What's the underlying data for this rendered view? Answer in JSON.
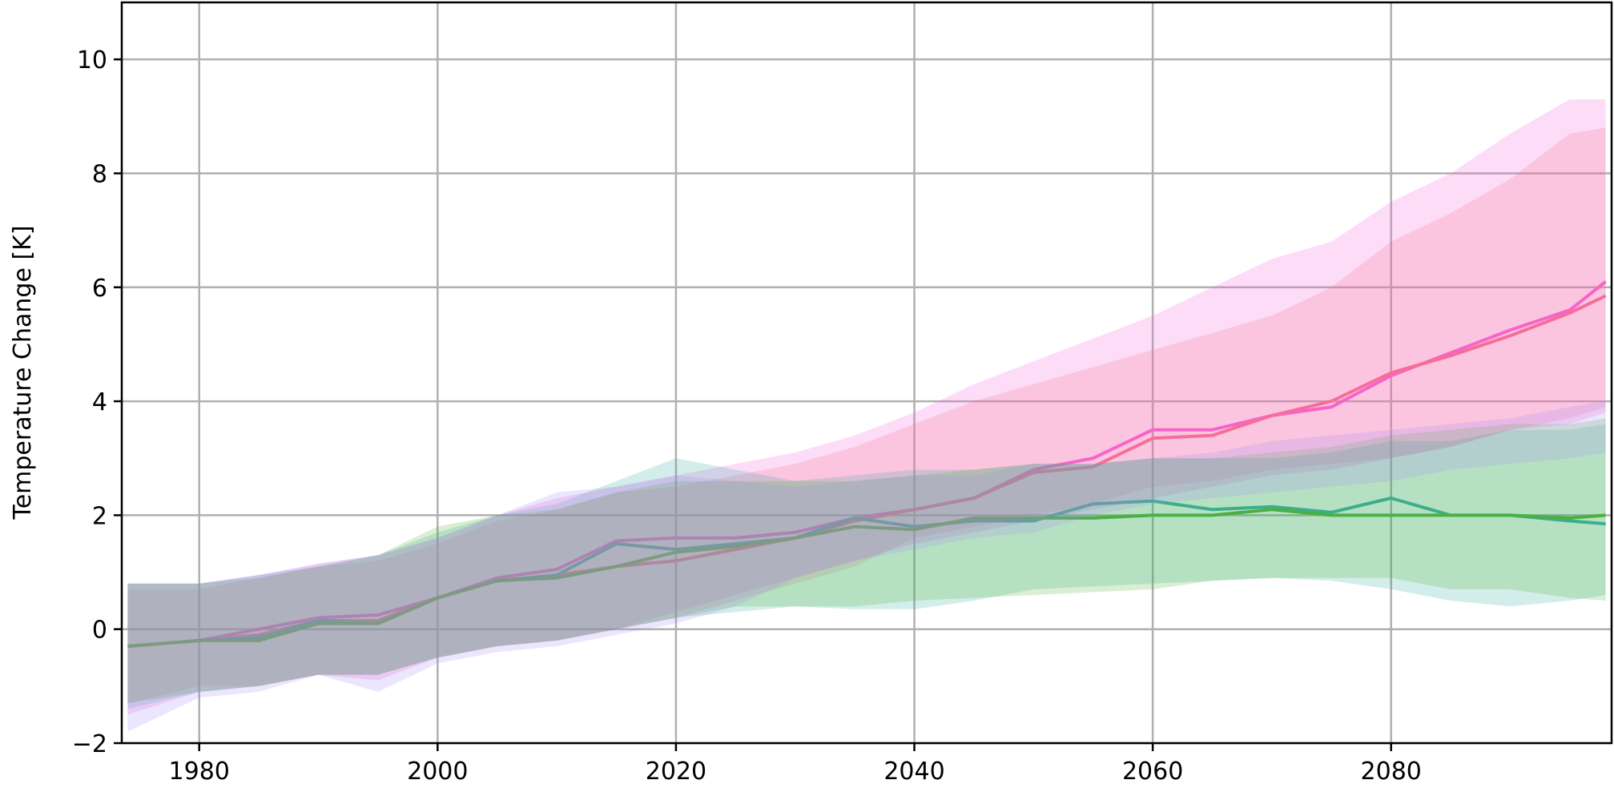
{
  "chart_data": {
    "type": "line",
    "title": "",
    "xlabel": "",
    "ylabel": "Temperature Change [K]",
    "xlim": [
      1973.5,
      2098.5
    ],
    "ylim": [
      -2,
      11
    ],
    "grid": true,
    "legend": "none",
    "xticks": [
      1980,
      2000,
      2020,
      2040,
      2060,
      2080
    ],
    "xtick_labels": [
      "1980",
      "2000",
      "2020",
      "2040",
      "2060",
      "2080"
    ],
    "yticks": [
      -2,
      0,
      2,
      4,
      6,
      8,
      10
    ],
    "ytick_labels": [
      "−2",
      "0",
      "2",
      "4",
      "6",
      "8",
      "10"
    ],
    "x": [
      1974,
      1980,
      1985,
      1990,
      1995,
      2000,
      2005,
      2010,
      2015,
      2020,
      2025,
      2030,
      2035,
      2040,
      2045,
      2050,
      2055,
      2060,
      2065,
      2070,
      2075,
      2080,
      2085,
      2090,
      2095,
      2098
    ],
    "series": [
      {
        "color": "#f561dd",
        "values": [
          -0.3,
          -0.2,
          0.0,
          0.2,
          0.25,
          0.55,
          0.9,
          1.05,
          1.55,
          1.6,
          1.6,
          1.7,
          1.95,
          2.1,
          2.3,
          2.8,
          3.0,
          3.5,
          3.5,
          3.75,
          3.9,
          4.45,
          4.85,
          5.25,
          5.6,
          6.1
        ]
      },
      {
        "color": "#f77189",
        "values": [
          -0.3,
          -0.2,
          -0.1,
          0.15,
          0.15,
          0.55,
          0.85,
          0.95,
          1.1,
          1.2,
          1.4,
          1.6,
          1.9,
          2.1,
          2.3,
          2.75,
          2.85,
          3.35,
          3.4,
          3.75,
          4.0,
          4.5,
          4.8,
          5.15,
          5.55,
          5.85
        ]
      },
      {
        "color": "#36ada4",
        "values": [
          -0.3,
          -0.2,
          -0.15,
          0.15,
          0.1,
          0.55,
          0.85,
          0.95,
          1.5,
          1.4,
          1.5,
          1.6,
          1.95,
          1.8,
          1.9,
          1.9,
          2.2,
          2.25,
          2.1,
          2.15,
          2.05,
          2.3,
          2.0,
          2.0,
          1.9,
          1.85
        ]
      },
      {
        "color": "#50b131",
        "values": [
          -0.3,
          -0.2,
          -0.2,
          0.1,
          0.1,
          0.55,
          0.85,
          0.9,
          1.1,
          1.35,
          1.45,
          1.6,
          1.8,
          1.75,
          1.95,
          1.95,
          1.95,
          2.0,
          2.0,
          2.1,
          2.0,
          2.0,
          2.0,
          2.0,
          1.95,
          2.0
        ]
      }
    ],
    "bands": [
      {
        "color": "#f561dd",
        "upper": [
          0.8,
          0.8,
          0.95,
          1.15,
          1.3,
          1.6,
          2.0,
          2.3,
          2.5,
          2.7,
          2.9,
          3.1,
          3.4,
          3.8,
          4.3,
          4.7,
          5.1,
          5.5,
          6.0,
          6.5,
          6.8,
          7.5,
          8.0,
          8.7,
          9.3,
          9.3
        ],
        "lower": [
          -1.5,
          -1.1,
          -1.0,
          -0.8,
          -0.9,
          -0.5,
          -0.3,
          -0.2,
          0.0,
          0.3,
          0.6,
          0.9,
          1.2,
          1.5,
          1.7,
          1.9,
          2.1,
          2.3,
          2.5,
          2.7,
          2.8,
          3.0,
          3.2,
          3.5,
          3.6,
          3.8
        ]
      },
      {
        "color": "#f77189",
        "upper": [
          0.7,
          0.7,
          0.9,
          1.1,
          1.2,
          1.5,
          1.9,
          2.1,
          2.4,
          2.5,
          2.7,
          2.9,
          3.2,
          3.6,
          4.0,
          4.3,
          4.6,
          4.9,
          5.2,
          5.5,
          6.0,
          6.8,
          7.3,
          7.9,
          8.7,
          8.8
        ],
        "lower": [
          -1.3,
          -1.0,
          -1.0,
          -0.8,
          -0.8,
          -0.5,
          -0.3,
          -0.2,
          0.0,
          0.2,
          0.5,
          0.8,
          1.1,
          1.6,
          1.8,
          2.0,
          2.2,
          2.5,
          2.6,
          2.8,
          2.9,
          3.0,
          3.2,
          3.5,
          3.7,
          3.9
        ]
      },
      {
        "color": "#36ada4",
        "upper": [
          0.8,
          0.8,
          0.95,
          1.1,
          1.3,
          1.7,
          2.0,
          2.2,
          2.6,
          3.0,
          2.8,
          2.6,
          2.7,
          2.8,
          2.8,
          2.9,
          2.9,
          3.0,
          3.0,
          3.0,
          3.1,
          3.3,
          3.3,
          3.5,
          3.5,
          3.6
        ],
        "lower": [
          -1.4,
          -1.1,
          -1.0,
          -0.8,
          -0.8,
          -0.5,
          -0.3,
          -0.2,
          0.0,
          0.2,
          0.3,
          0.4,
          0.35,
          0.35,
          0.5,
          0.7,
          0.75,
          0.8,
          0.85,
          0.9,
          0.85,
          0.7,
          0.5,
          0.4,
          0.5,
          0.6
        ]
      },
      {
        "color": "#50b131",
        "upper": [
          0.8,
          0.8,
          0.9,
          1.1,
          1.3,
          1.8,
          2.0,
          2.1,
          2.4,
          2.6,
          2.6,
          2.6,
          2.6,
          2.7,
          2.8,
          2.9,
          2.9,
          3.0,
          3.0,
          3.1,
          3.2,
          3.4,
          3.5,
          3.6,
          3.6,
          3.7
        ],
        "lower": [
          -1.3,
          -1.1,
          -1.0,
          -0.8,
          -0.8,
          -0.5,
          -0.3,
          -0.2,
          0.0,
          0.2,
          0.4,
          0.4,
          0.4,
          0.5,
          0.55,
          0.6,
          0.65,
          0.7,
          0.85,
          0.9,
          0.9,
          0.9,
          0.7,
          0.7,
          0.55,
          0.5
        ]
      },
      {
        "color": "#a48cf4",
        "upper": [
          0.8,
          0.8,
          0.95,
          1.15,
          1.3,
          1.6,
          2.0,
          2.4,
          2.5,
          2.7,
          2.6,
          2.5,
          2.6,
          2.7,
          2.7,
          2.9,
          2.9,
          3.0,
          3.1,
          3.3,
          3.4,
          3.5,
          3.6,
          3.7,
          3.9,
          4.0
        ],
        "lower": [
          -1.8,
          -1.2,
          -1.1,
          -0.8,
          -1.1,
          -0.6,
          -0.4,
          -0.3,
          -0.1,
          0.1,
          0.4,
          0.9,
          1.2,
          1.4,
          1.6,
          1.7,
          2.0,
          2.2,
          2.3,
          2.4,
          2.5,
          2.6,
          2.8,
          2.9,
          3.0,
          3.1
        ]
      }
    ]
  }
}
